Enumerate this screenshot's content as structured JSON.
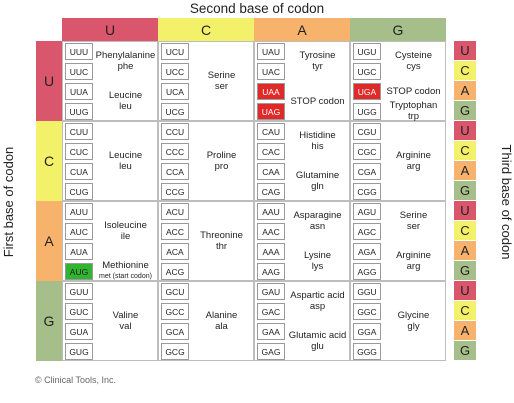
{
  "titles": {
    "top": "Second base of codon",
    "left": "First base of codon",
    "right": "Third base of codon"
  },
  "colors": {
    "U": "#d9566c",
    "C": "#f3f06a",
    "A": "#f7b26b",
    "G": "#a6bf8a",
    "stop_highlight": "#e02a2a",
    "start_highlight": "#2fb52f"
  },
  "second_bases": [
    "U",
    "C",
    "A",
    "G"
  ],
  "first_bases": [
    "U",
    "C",
    "A",
    "G"
  ],
  "third_bases": [
    "U",
    "C",
    "A",
    "G"
  ],
  "rows": [
    {
      "first": "U",
      "blocks": [
        {
          "codons": [
            "UUU",
            "UUC",
            "UUA",
            "UUG"
          ],
          "groups": [
            {
              "name": "Phenylalanine",
              "abbr": "phe",
              "rows": [
                0,
                1
              ]
            },
            {
              "name": "Leucine",
              "abbr": "leu",
              "rows": [
                2,
                3
              ]
            }
          ]
        },
        {
          "codons": [
            "UCU",
            "UCC",
            "UCA",
            "UCG"
          ],
          "groups": [
            {
              "name": "Serine",
              "abbr": "ser",
              "rows": [
                0,
                3
              ]
            }
          ]
        },
        {
          "codons": [
            "UAU",
            "UAC",
            "UAA",
            "UAG"
          ],
          "highlight": {
            "2": "stop",
            "3": "stop"
          },
          "groups": [
            {
              "name": "Tyrosine",
              "abbr": "tyr",
              "rows": [
                0,
                1
              ]
            },
            {
              "name": "STOP codon",
              "abbr": "",
              "rows": [
                2,
                3
              ]
            }
          ]
        },
        {
          "codons": [
            "UGU",
            "UGC",
            "UGA",
            "UGG"
          ],
          "highlight": {
            "2": "stop"
          },
          "groups": [
            {
              "name": "Cysteine",
              "abbr": "cys",
              "rows": [
                0,
                1
              ]
            },
            {
              "name": "STOP codon",
              "abbr": "",
              "rows": [
                2,
                2
              ]
            },
            {
              "name": "Tryptophan",
              "abbr": "trp",
              "rows": [
                3,
                3
              ]
            }
          ]
        }
      ]
    },
    {
      "first": "C",
      "blocks": [
        {
          "codons": [
            "CUU",
            "CUC",
            "CUA",
            "CUG"
          ],
          "groups": [
            {
              "name": "Leucine",
              "abbr": "leu",
              "rows": [
                0,
                3
              ]
            }
          ]
        },
        {
          "codons": [
            "CCU",
            "CCC",
            "CCA",
            "CCG"
          ],
          "groups": [
            {
              "name": "Proline",
              "abbr": "pro",
              "rows": [
                0,
                3
              ]
            }
          ]
        },
        {
          "codons": [
            "CAU",
            "CAC",
            "CAA",
            "CAG"
          ],
          "groups": [
            {
              "name": "Histidine",
              "abbr": "his",
              "rows": [
                0,
                1
              ]
            },
            {
              "name": "Glutamine",
              "abbr": "gln",
              "rows": [
                2,
                3
              ]
            }
          ]
        },
        {
          "codons": [
            "CGU",
            "CGC",
            "CGA",
            "CGG"
          ],
          "groups": [
            {
              "name": "Arginine",
              "abbr": "arg",
              "rows": [
                0,
                3
              ]
            }
          ]
        }
      ]
    },
    {
      "first": "A",
      "blocks": [
        {
          "codons": [
            "AUU",
            "AUC",
            "AUA",
            "AUG"
          ],
          "highlight": {
            "3": "start"
          },
          "groups": [
            {
              "name": "Isoleucine",
              "abbr": "ile",
              "rows": [
                0,
                2
              ]
            },
            {
              "name": "Methionine",
              "abbr": "met (start codon)",
              "rows": [
                3,
                3
              ]
            }
          ]
        },
        {
          "codons": [
            "ACU",
            "ACC",
            "ACA",
            "ACG"
          ],
          "groups": [
            {
              "name": "Threonine",
              "abbr": "thr",
              "rows": [
                0,
                3
              ]
            }
          ]
        },
        {
          "codons": [
            "AAU",
            "AAC",
            "AAA",
            "AAG"
          ],
          "groups": [
            {
              "name": "Asparagine",
              "abbr": "asn",
              "rows": [
                0,
                1
              ]
            },
            {
              "name": "Lysine",
              "abbr": "lys",
              "rows": [
                2,
                3
              ]
            }
          ]
        },
        {
          "codons": [
            "AGU",
            "AGC",
            "AGA",
            "AGG"
          ],
          "groups": [
            {
              "name": "Serine",
              "abbr": "ser",
              "rows": [
                0,
                1
              ]
            },
            {
              "name": "Arginine",
              "abbr": "arg",
              "rows": [
                2,
                3
              ]
            }
          ]
        }
      ]
    },
    {
      "first": "G",
      "blocks": [
        {
          "codons": [
            "GUU",
            "GUC",
            "GUA",
            "GUG"
          ],
          "groups": [
            {
              "name": "Valine",
              "abbr": "val",
              "rows": [
                0,
                3
              ]
            }
          ]
        },
        {
          "codons": [
            "GCU",
            "GCC",
            "GCA",
            "GCG"
          ],
          "groups": [
            {
              "name": "Alanine",
              "abbr": "ala",
              "rows": [
                0,
                3
              ]
            }
          ]
        },
        {
          "codons": [
            "GAU",
            "GAC",
            "GAA",
            "GAG"
          ],
          "groups": [
            {
              "name": "Aspartic acid",
              "abbr": "asp",
              "rows": [
                0,
                1
              ]
            },
            {
              "name": "Glutamic acid",
              "abbr": "glu",
              "rows": [
                2,
                3
              ]
            }
          ]
        },
        {
          "codons": [
            "GGU",
            "GGC",
            "GGA",
            "GGG"
          ],
          "groups": [
            {
              "name": "Glycine",
              "abbr": "gly",
              "rows": [
                0,
                3
              ]
            }
          ]
        }
      ]
    }
  ],
  "copyright": "© Clinical Tools, Inc."
}
